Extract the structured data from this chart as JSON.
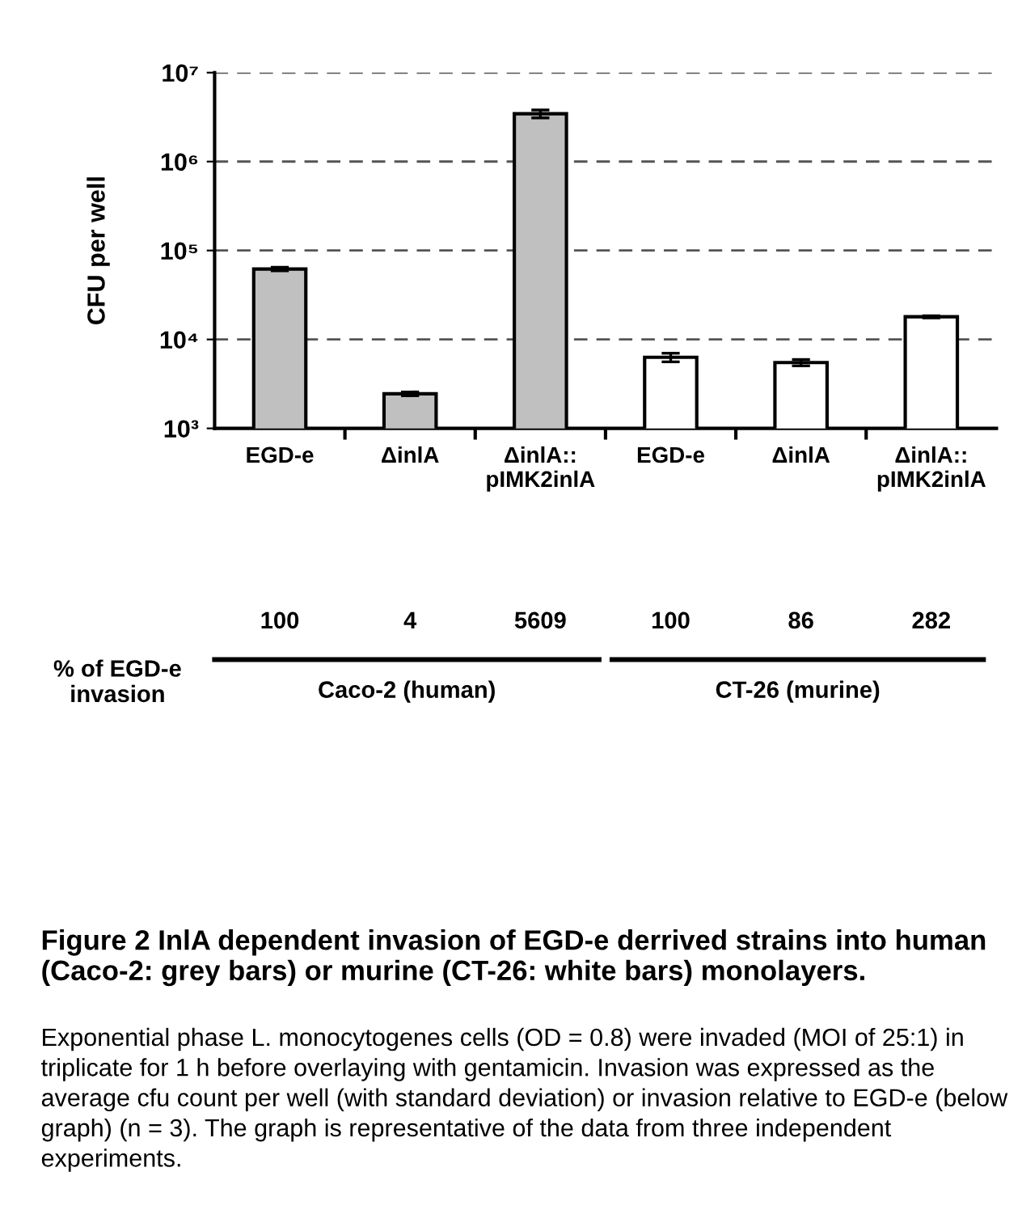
{
  "chart_data": {
    "type": "bar",
    "ylabel": "CFU per well",
    "categories": [
      "EGD-e",
      "ΔinlA",
      "ΔinlA::\npIMK2inlA",
      "EGD-e",
      "ΔinlA",
      "ΔinlA::\npIMK2inlA"
    ],
    "values": [
      62000,
      2450,
      3450000,
      6300,
      5500,
      18000
    ],
    "errors": [
      3000,
      120,
      350000,
      700,
      450,
      500
    ],
    "colors": [
      "#c0c0c0",
      "#c0c0c0",
      "#c0c0c0",
      "#ffffff",
      "#ffffff",
      "#ffffff"
    ],
    "log": true,
    "ylim": [
      1000,
      10000000
    ],
    "yticks": [
      {
        "value": 1000,
        "label": "10³"
      },
      {
        "value": 10000,
        "label": "10⁴"
      },
      {
        "value": 100000,
        "label": "10⁵"
      },
      {
        "value": 1000000,
        "label": "10⁶"
      },
      {
        "value": 10000000,
        "label": "10⁷"
      }
    ],
    "grid": "y",
    "annotations": [
      "% of EGD-e\ninvasion",
      "100",
      "4",
      "5609",
      "100",
      "86",
      "282",
      "Caco-2 (human)",
      "CT-26 (murine)",
      "Figure 2 InlA dependent invasion of EGD-e derrived strains into human (Caco-2: grey bars) or murine (CT-26: white bars) monolayers.",
      "Exponential phase L. monocytogenes cells (OD = 0.8) were invaded (MOI of 25:1) in triplicate for 1 h before overlaying with gentamicin. Invasion was expressed as the average cfu count per well (with standard deviation) or invasion relative to EGD-e (below graph) (n = 3). The graph is representative of the data from three independent experiments."
    ]
  }
}
